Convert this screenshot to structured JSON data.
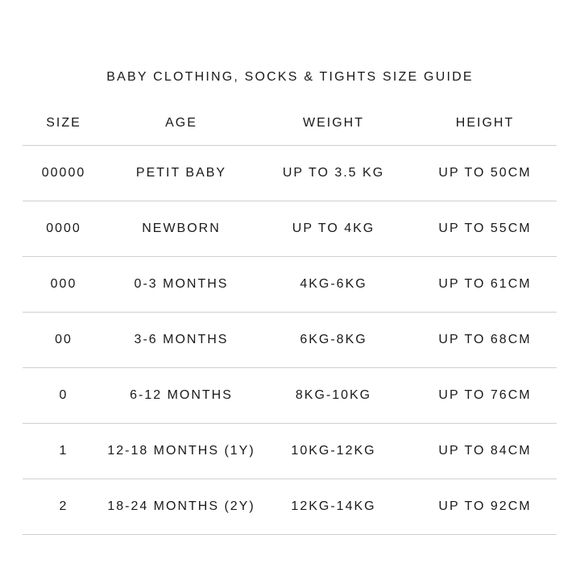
{
  "title": "BABY CLOTHING, SOCKS & TIGHTS SIZE GUIDE",
  "headers": [
    "SIZE",
    "AGE",
    "WEIGHT",
    "HEIGHT"
  ],
  "rows": [
    [
      "00000",
      "PETIT BABY",
      "UP TO 3.5 KG",
      "UP TO 50CM"
    ],
    [
      "0000",
      "NEWBORN",
      "UP TO 4KG",
      "UP TO 55CM"
    ],
    [
      "000",
      "0-3 MONTHS",
      "4KG-6KG",
      "UP TO 61CM"
    ],
    [
      "00",
      "3-6 MONTHS",
      "6KG-8KG",
      "UP TO 68CM"
    ],
    [
      "0",
      "6-12 MONTHS",
      "8KG-10KG",
      "UP TO 76CM"
    ],
    [
      "1",
      "12-18 MONTHS (1Y)",
      "10KG-12KG",
      "UP TO 84CM"
    ],
    [
      "2",
      "18-24 MONTHS (2Y)",
      "12KG-14KG",
      "UP TO 92CM"
    ]
  ]
}
